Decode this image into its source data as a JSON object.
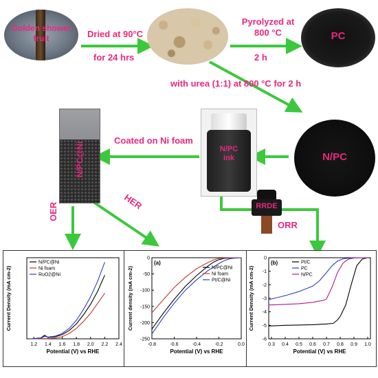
{
  "samples": {
    "fruit_label": "Golden shower fruit",
    "pc_label": "PC",
    "npc_label": "N/PC",
    "ink_label": "N/PC ink",
    "electrode_label": "N/PC@Ni",
    "rrde_label": "RRDE"
  },
  "steps": {
    "dried": "Dried at 90°C",
    "dried_time": "for 24 hrs",
    "pyrolyzed": "Pyrolyzed at 800 °C",
    "pyrolyzed_time": "2 h",
    "urea": "with urea (1:1) at 800 °C for 2 h",
    "coated": "Coated on Ni foam",
    "oer": "OER",
    "her": "HER",
    "orr": "ORR"
  },
  "colors": {
    "arrow": "#3cc83c",
    "label": "#e8287f",
    "series_black": "#000000",
    "series_red": "#c0392b",
    "series_blue": "#2a3dbd",
    "series_magenta": "#b0178a"
  },
  "chart_data": [
    {
      "type": "line",
      "panel": "OER",
      "xlabel": "Potential (V) vs RHE",
      "ylabel": "Current Density (mA cm-2)",
      "xlim": [
        1.1,
        2.4
      ],
      "ylim": [
        0,
        270
      ],
      "xticks": [
        "1.2",
        "1.4",
        "1.6",
        "1.8",
        "2.0",
        "2.2",
        "2.4"
      ],
      "legend": "top-left",
      "series": [
        {
          "name": "N/PC@Ni",
          "color": "#000000",
          "x": [
            1.15,
            1.3,
            1.35,
            1.4,
            1.5,
            1.6,
            1.7,
            1.8,
            1.9,
            2.0,
            2.1,
            2.2
          ],
          "y": [
            0,
            3,
            12,
            5,
            7,
            14,
            28,
            50,
            80,
            115,
            158,
            212
          ]
        },
        {
          "name": "Ni foam",
          "color": "#c0392b",
          "x": [
            1.15,
            1.4,
            1.5,
            1.6,
            1.7,
            1.8,
            1.9,
            2.0,
            2.1,
            2.2
          ],
          "y": [
            0,
            1,
            3,
            7,
            18,
            35,
            58,
            85,
            118,
            152
          ]
        },
        {
          "name": "RuO2@Ni",
          "color": "#2a3dbd",
          "x": [
            1.15,
            1.3,
            1.35,
            1.4,
            1.5,
            1.6,
            1.7,
            1.8,
            1.9,
            2.0,
            2.1,
            2.2
          ],
          "y": [
            0,
            2,
            8,
            6,
            9,
            18,
            35,
            62,
            98,
            140,
            192,
            255
          ]
        }
      ]
    },
    {
      "type": "line",
      "panel": "HER",
      "title": "(a)",
      "xlabel": "Potential (V) vs RHE",
      "ylabel": "Current density (mA cm-2)",
      "xlim": [
        -0.8,
        0.0
      ],
      "ylim": [
        -250,
        0
      ],
      "xticks": [
        "-0.8",
        "-0.6",
        "-0.4",
        "-0.2",
        "0.0"
      ],
      "yticks": [
        "0",
        "-50",
        "-100",
        "-150",
        "-200",
        "-250"
      ],
      "legend": "right",
      "series": [
        {
          "name": "N/PC@Ni",
          "color": "#000000",
          "x": [
            -0.8,
            -0.7,
            -0.6,
            -0.5,
            -0.4,
            -0.3,
            -0.25,
            -0.2,
            -0.15,
            -0.1,
            0.0
          ],
          "y": [
            -220,
            -172,
            -128,
            -88,
            -55,
            -26,
            -14,
            -6,
            -2,
            -1,
            0
          ]
        },
        {
          "name": "Ni foam",
          "color": "#c0392b",
          "x": [
            -0.8,
            -0.7,
            -0.6,
            -0.5,
            -0.4,
            -0.3,
            -0.25,
            -0.2,
            -0.15,
            -0.1,
            0.0
          ],
          "y": [
            -170,
            -130,
            -92,
            -60,
            -34,
            -15,
            -7,
            -2,
            -1,
            0,
            0
          ]
        },
        {
          "name": "Pt/C@Ni",
          "color": "#2a3dbd",
          "x": [
            -0.8,
            -0.7,
            -0.6,
            -0.5,
            -0.4,
            -0.3,
            -0.2,
            -0.15,
            -0.1,
            -0.05,
            0.0
          ],
          "y": [
            -235,
            -185,
            -140,
            -100,
            -68,
            -40,
            -18,
            -9,
            -3,
            -1,
            0
          ]
        }
      ]
    },
    {
      "type": "line",
      "panel": "ORR",
      "title": "(b)",
      "xlabel": "Potential (V) vs RHE",
      "ylabel": "Current Density (mA cm-2)",
      "xlim": [
        0.28,
        1.02
      ],
      "ylim": [
        -6,
        0
      ],
      "xticks": [
        "0.3",
        "0.4",
        "0.5",
        "0.6",
        "0.7",
        "0.8",
        "0.9",
        "1.0"
      ],
      "yticks": [
        "0",
        "-1",
        "-2",
        "-3",
        "-4",
        "-5",
        "-6"
      ],
      "legend": "top-left",
      "series": [
        {
          "name": "Pt/C",
          "color": "#000000",
          "x": [
            0.28,
            0.4,
            0.5,
            0.6,
            0.7,
            0.75,
            0.78,
            0.8,
            0.84,
            0.88,
            0.92,
            0.96,
            1.0
          ],
          "y": [
            -5.05,
            -5.0,
            -4.98,
            -4.95,
            -4.9,
            -4.85,
            -4.6,
            -4.35,
            -3.5,
            -2.0,
            -0.6,
            -0.1,
            0
          ]
        },
        {
          "name": "PC",
          "color": "#2a3dbd",
          "x": [
            0.28,
            0.4,
            0.5,
            0.6,
            0.65,
            0.7,
            0.74,
            0.78,
            0.82,
            0.86,
            0.9,
            1.0
          ],
          "y": [
            -3.1,
            -2.8,
            -2.5,
            -2.1,
            -1.7,
            -1.1,
            -0.6,
            -0.25,
            -0.08,
            -0.03,
            0,
            0
          ]
        },
        {
          "name": "N/PC",
          "color": "#b0178a",
          "x": [
            0.28,
            0.4,
            0.5,
            0.6,
            0.65,
            0.68,
            0.7,
            0.74,
            0.78,
            0.82,
            0.86,
            0.9,
            1.0
          ],
          "y": [
            -3.5,
            -3.45,
            -3.4,
            -3.3,
            -3.2,
            -3.15,
            -3.05,
            -2.2,
            -1.1,
            -0.4,
            -0.1,
            -0.02,
            0
          ]
        }
      ]
    }
  ]
}
